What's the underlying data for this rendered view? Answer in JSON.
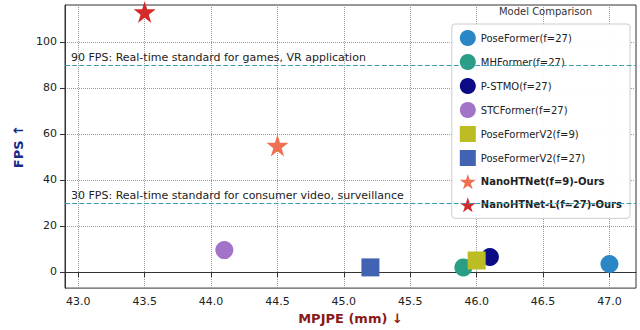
{
  "chart_data": {
    "type": "scatter",
    "x_label": "MPJPE (mm) ↓",
    "y_label": "FPS ↑",
    "legend_title": "Model Comparison",
    "legend": "upper right",
    "grid": true,
    "xlim": [
      42.9,
      47.2
    ],
    "xticks": [
      {
        "value": 43,
        "label": "43.0"
      },
      {
        "value": 43.5,
        "label": "43.5"
      },
      {
        "value": 44,
        "label": "44.0"
      },
      {
        "value": 44.5,
        "label": "44.5"
      },
      {
        "value": 45,
        "label": "45.0"
      },
      {
        "value": 45.5,
        "label": "45.5"
      },
      {
        "value": 46,
        "label": "46.0"
      },
      {
        "value": 46.5,
        "label": "46.5"
      },
      {
        "value": 47,
        "label": "47.0"
      }
    ],
    "ylim": [
      -7,
      116
    ],
    "yticks": [
      0,
      20,
      40,
      60,
      80,
      100
    ],
    "annotations": [
      {
        "y": 90,
        "text": "90 FPS: Real-time standard for games, VR application"
      },
      {
        "y": 30,
        "text": "30 FPS: Real-time standard for consumer video, surveillance"
      }
    ],
    "series": [
      {
        "name": "PoseFormer(f=27)",
        "color": "#2b86c6",
        "marker": "circle",
        "x": [
          47.0
        ],
        "values": [
          3.5
        ]
      },
      {
        "name": "MHFormer(f=27)",
        "color": "#2a9d85",
        "marker": "circle",
        "x": [
          45.9
        ],
        "values": [
          2
        ]
      },
      {
        "name": "P-STMO(f=27)",
        "color": "#0b0b85",
        "marker": "circle",
        "x": [
          46.1
        ],
        "values": [
          6.5
        ]
      },
      {
        "name": "STCFormer(f=27)",
        "color": "#a173c9",
        "marker": "circle",
        "x": [
          44.1
        ],
        "values": [
          9.5
        ]
      },
      {
        "name": "PoseFormerV2(f=9)",
        "color": "#bcbd22",
        "marker": "square",
        "x": [
          46.0
        ],
        "values": [
          5
        ]
      },
      {
        "name": "PoseFormerV2(f=27)",
        "color": "#4262b2",
        "marker": "square",
        "x": [
          45.2
        ],
        "values": [
          2
        ]
      },
      {
        "name": "NanoHTNet(f=9)-Ours",
        "color": "#ef7052",
        "marker": "star",
        "x": [
          44.5
        ],
        "values": [
          55
        ]
      },
      {
        "name": "NanoHTNet-L(f=27)-Ours",
        "color": "#d42a2a",
        "marker": "star",
        "x": [
          43.5
        ],
        "values": [
          113
        ]
      }
    ]
  }
}
